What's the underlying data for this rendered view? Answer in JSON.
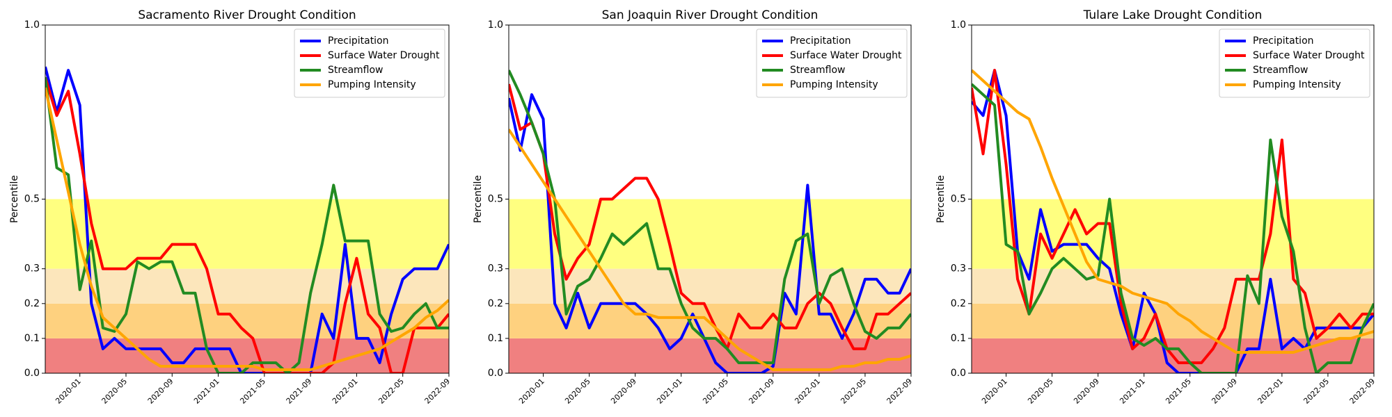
{
  "chart_data": [
    {
      "type": "line",
      "title": "Sacramento River Drought Condition",
      "ylabel": "Percentile",
      "x": [
        "2019-10",
        "2019-11",
        "2019-12",
        "2020-01",
        "2020-02",
        "2020-03",
        "2020-04",
        "2020-05",
        "2020-06",
        "2020-07",
        "2020-08",
        "2020-09",
        "2020-10",
        "2020-11",
        "2020-12",
        "2021-01",
        "2021-02",
        "2021-03",
        "2021-04",
        "2021-05",
        "2021-06",
        "2021-07",
        "2021-08",
        "2021-09",
        "2021-10",
        "2021-11",
        "2021-12",
        "2022-01",
        "2022-02",
        "2022-03",
        "2022-04",
        "2022-05",
        "2022-06",
        "2022-07",
        "2022-08",
        "2022-09"
      ],
      "xlim": [
        "2019-10",
        "2022-09"
      ],
      "xticks": [
        "2020-01",
        "2020-05",
        "2020-09",
        "2021-01",
        "2021-05",
        "2021-09",
        "2022-01",
        "2022-05",
        "2022-09"
      ],
      "ylim": [
        0,
        1
      ],
      "yticks": [
        {
          "value": 0,
          "label": "0.0"
        },
        0.1,
        0.2,
        0.3,
        0.5,
        {
          "value": 1,
          "label": "1.0"
        }
      ],
      "bands": [
        {
          "from": 0,
          "to": 0.1,
          "color": "#f08080"
        },
        {
          "from": 0.1,
          "to": 0.2,
          "color": "#fed17f"
        },
        {
          "from": 0.2,
          "to": 0.3,
          "color": "#fce6bb"
        },
        {
          "from": 0.3,
          "to": 0.5,
          "color": "#ffff80"
        }
      ],
      "legend": "upper right",
      "series": [
        {
          "name": "Precipitation",
          "color": "#0000ff",
          "values": [
            0.88,
            0.75,
            0.87,
            0.77,
            0.2,
            0.07,
            0.1,
            0.07,
            0.07,
            0.07,
            0.07,
            0.03,
            0.03,
            0.07,
            0.07,
            0.07,
            0.07,
            0,
            0,
            0,
            0,
            0,
            0,
            0,
            0.17,
            0.1,
            0.37,
            0.1,
            0.1,
            0.03,
            0.17,
            0.27,
            0.3,
            0.3,
            0.3,
            0.37
          ]
        },
        {
          "name": "Surface Water Drought",
          "color": "#ff0000",
          "values": [
            0.85,
            0.74,
            0.81,
            0.63,
            0.43,
            0.3,
            0.3,
            0.3,
            0.33,
            0.33,
            0.33,
            0.37,
            0.37,
            0.37,
            0.3,
            0.17,
            0.17,
            0.13,
            0.1,
            0,
            0,
            0,
            0,
            0,
            0,
            0.03,
            0.2,
            0.33,
            0.17,
            0.13,
            0,
            0,
            0.13,
            0.13,
            0.13,
            0.17
          ]
        },
        {
          "name": "Streamflow",
          "color": "#228b22",
          "values": [
            0.85,
            0.59,
            0.57,
            0.24,
            0.38,
            0.13,
            0.12,
            0.17,
            0.32,
            0.3,
            0.32,
            0.32,
            0.23,
            0.23,
            0.07,
            0,
            0,
            0,
            0.03,
            0.03,
            0.03,
            0,
            0.03,
            0.23,
            0.37,
            0.54,
            0.38,
            0.38,
            0.38,
            0.17,
            0.12,
            0.13,
            0.17,
            0.2,
            0.13,
            0.13
          ]
        },
        {
          "name": "Pumping Intensity",
          "color": "#ffa500",
          "values": [
            0.82,
            0.67,
            0.52,
            0.37,
            0.25,
            0.16,
            0.13,
            0.1,
            0.07,
            0.04,
            0.02,
            0.02,
            0.02,
            0.02,
            0.02,
            0.02,
            0.02,
            0.02,
            0.02,
            0.01,
            0.01,
            0.01,
            0.01,
            0.01,
            0.02,
            0.03,
            0.04,
            0.05,
            0.06,
            0.07,
            0.09,
            0.11,
            0.13,
            0.16,
            0.18,
            0.21
          ]
        }
      ]
    },
    {
      "type": "line",
      "title": "San Joaquin River Drought Condition",
      "ylabel": "Percentile",
      "x": [
        "2019-10",
        "2019-11",
        "2019-12",
        "2020-01",
        "2020-02",
        "2020-03",
        "2020-04",
        "2020-05",
        "2020-06",
        "2020-07",
        "2020-08",
        "2020-09",
        "2020-10",
        "2020-11",
        "2020-12",
        "2021-01",
        "2021-02",
        "2021-03",
        "2021-04",
        "2021-05",
        "2021-06",
        "2021-07",
        "2021-08",
        "2021-09",
        "2021-10",
        "2021-11",
        "2021-12",
        "2022-01",
        "2022-02",
        "2022-03",
        "2022-04",
        "2022-05",
        "2022-06",
        "2022-07",
        "2022-08",
        "2022-09"
      ],
      "xlim": [
        "2019-10",
        "2022-09"
      ],
      "xticks": [
        "2020-01",
        "2020-05",
        "2020-09",
        "2021-01",
        "2021-05",
        "2021-09",
        "2022-01",
        "2022-05",
        "2022-09"
      ],
      "ylim": [
        0,
        1
      ],
      "yticks": [
        {
          "value": 0,
          "label": "0.0"
        },
        0.1,
        0.2,
        0.3,
        0.5,
        {
          "value": 1,
          "label": "1.0"
        }
      ],
      "bands": [
        {
          "from": 0,
          "to": 0.1,
          "color": "#f08080"
        },
        {
          "from": 0.1,
          "to": 0.2,
          "color": "#fed17f"
        },
        {
          "from": 0.2,
          "to": 0.3,
          "color": "#fce6bb"
        },
        {
          "from": 0.3,
          "to": 0.5,
          "color": "#ffff80"
        }
      ],
      "legend": "upper right",
      "series": [
        {
          "name": "Precipitation",
          "color": "#0000ff",
          "values": [
            0.79,
            0.64,
            0.8,
            0.73,
            0.2,
            0.13,
            0.23,
            0.13,
            0.2,
            0.2,
            0.2,
            0.2,
            0.17,
            0.13,
            0.07,
            0.1,
            0.17,
            0.1,
            0.03,
            0,
            0,
            0,
            0,
            0.02,
            0.23,
            0.17,
            0.54,
            0.17,
            0.17,
            0.1,
            0.17,
            0.27,
            0.27,
            0.23,
            0.23,
            0.3
          ]
        },
        {
          "name": "Surface Water Drought",
          "color": "#ff0000",
          "values": [
            0.83,
            0.7,
            0.72,
            0.63,
            0.4,
            0.27,
            0.33,
            0.37,
            0.5,
            0.5,
            0.53,
            0.56,
            0.56,
            0.5,
            0.37,
            0.23,
            0.2,
            0.2,
            0.13,
            0.07,
            0.17,
            0.13,
            0.13,
            0.17,
            0.13,
            0.13,
            0.2,
            0.23,
            0.2,
            0.13,
            0.07,
            0.07,
            0.17,
            0.17,
            0.2,
            0.23
          ]
        },
        {
          "name": "Streamflow",
          "color": "#228b22",
          "values": [
            0.87,
            0.8,
            0.72,
            0.63,
            0.5,
            0.17,
            0.25,
            0.27,
            0.33,
            0.4,
            0.37,
            0.4,
            0.43,
            0.3,
            0.3,
            0.2,
            0.13,
            0.1,
            0.1,
            0.07,
            0.03,
            0.03,
            0.03,
            0.03,
            0.27,
            0.38,
            0.4,
            0.2,
            0.28,
            0.3,
            0.2,
            0.12,
            0.1,
            0.13,
            0.13,
            0.17
          ]
        },
        {
          "name": "Pumping Intensity",
          "color": "#ffa500",
          "values": [
            0.7,
            0.65,
            0.6,
            0.55,
            0.5,
            0.45,
            0.4,
            0.35,
            0.3,
            0.25,
            0.2,
            0.17,
            0.17,
            0.16,
            0.16,
            0.16,
            0.16,
            0.16,
            0.13,
            0.1,
            0.07,
            0.05,
            0.03,
            0.01,
            0.01,
            0.01,
            0.01,
            0.01,
            0.01,
            0.02,
            0.02,
            0.03,
            0.03,
            0.04,
            0.04,
            0.05
          ]
        }
      ]
    },
    {
      "type": "line",
      "title": "Tulare Lake Drought Condition",
      "ylabel": "Percentile",
      "x": [
        "2019-10",
        "2019-11",
        "2019-12",
        "2020-01",
        "2020-02",
        "2020-03",
        "2020-04",
        "2020-05",
        "2020-06",
        "2020-07",
        "2020-08",
        "2020-09",
        "2020-10",
        "2020-11",
        "2020-12",
        "2021-01",
        "2021-02",
        "2021-03",
        "2021-04",
        "2021-05",
        "2021-06",
        "2021-07",
        "2021-08",
        "2021-09",
        "2021-10",
        "2021-11",
        "2021-12",
        "2022-01",
        "2022-02",
        "2022-03",
        "2022-04",
        "2022-05",
        "2022-06",
        "2022-07",
        "2022-08",
        "2022-09"
      ],
      "xlim": [
        "2019-10",
        "2022-09"
      ],
      "xticks": [
        "2020-01",
        "2020-05",
        "2020-09",
        "2021-01",
        "2021-05",
        "2021-09",
        "2022-01",
        "2022-05",
        "2022-09"
      ],
      "ylim": [
        0,
        1
      ],
      "yticks": [
        {
          "value": 0,
          "label": "0.0"
        },
        0.1,
        0.2,
        0.3,
        0.5,
        {
          "value": 1,
          "label": "1.0"
        }
      ],
      "bands": [
        {
          "from": 0,
          "to": 0.1,
          "color": "#f08080"
        },
        {
          "from": 0.1,
          "to": 0.2,
          "color": "#fed17f"
        },
        {
          "from": 0.2,
          "to": 0.3,
          "color": "#fce6bb"
        },
        {
          "from": 0.3,
          "to": 0.5,
          "color": "#ffff80"
        }
      ],
      "legend": "upper right",
      "series": [
        {
          "name": "Precipitation",
          "color": "#0000ff",
          "values": [
            0.78,
            0.74,
            0.87,
            0.74,
            0.35,
            0.27,
            0.47,
            0.35,
            0.37,
            0.37,
            0.37,
            0.33,
            0.3,
            0.17,
            0.07,
            0.23,
            0.17,
            0.03,
            0,
            0,
            0,
            0,
            0,
            0,
            0.07,
            0.07,
            0.27,
            0.07,
            0.1,
            0.07,
            0.13,
            0.13,
            0.13,
            0.13,
            0.13,
            0.17
          ]
        },
        {
          "name": "Surface Water Drought",
          "color": "#ff0000",
          "values": [
            0.82,
            0.63,
            0.87,
            0.6,
            0.27,
            0.17,
            0.4,
            0.33,
            0.4,
            0.47,
            0.4,
            0.43,
            0.43,
            0.2,
            0.07,
            0.1,
            0.17,
            0.07,
            0.03,
            0.03,
            0.03,
            0.07,
            0.13,
            0.27,
            0.27,
            0.27,
            0.4,
            0.67,
            0.27,
            0.23,
            0.1,
            0.13,
            0.17,
            0.13,
            0.17,
            0.17
          ]
        },
        {
          "name": "Streamflow",
          "color": "#228b22",
          "values": [
            0.83,
            0.8,
            0.77,
            0.37,
            0.35,
            0.17,
            0.23,
            0.3,
            0.33,
            0.3,
            0.27,
            0.28,
            0.5,
            0.23,
            0.1,
            0.08,
            0.1,
            0.07,
            0.07,
            0.03,
            0,
            0,
            0,
            0,
            0.28,
            0.2,
            0.67,
            0.45,
            0.35,
            0.13,
            0,
            0.03,
            0.03,
            0.03,
            0.13,
            0.2
          ]
        },
        {
          "name": "Pumping Intensity",
          "color": "#ffa500",
          "values": [
            0.87,
            0.84,
            0.81,
            0.78,
            0.75,
            0.73,
            0.65,
            0.56,
            0.48,
            0.4,
            0.32,
            0.27,
            0.26,
            0.25,
            0.23,
            0.22,
            0.21,
            0.2,
            0.17,
            0.15,
            0.12,
            0.1,
            0.08,
            0.06,
            0.06,
            0.06,
            0.06,
            0.06,
            0.06,
            0.07,
            0.08,
            0.09,
            0.1,
            0.1,
            0.11,
            0.12
          ]
        }
      ]
    }
  ]
}
